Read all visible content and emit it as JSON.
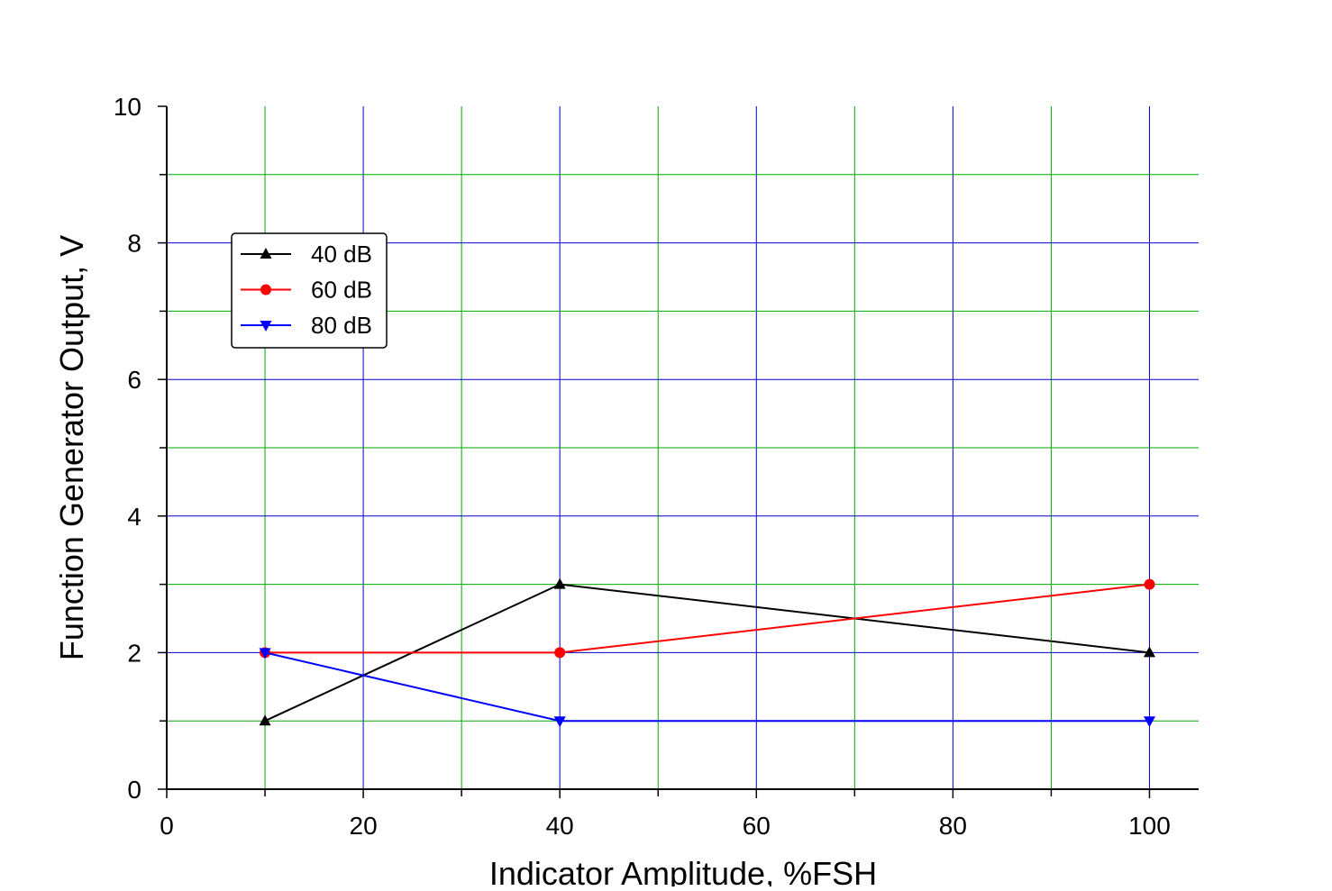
{
  "chart_data": {
    "type": "line",
    "title": "",
    "xlabel": "Indicator Amplitude, %FSH",
    "ylabel": "Function Generator Output, V",
    "xlim": [
      0,
      105
    ],
    "ylim": [
      0,
      10
    ],
    "x_ticks": [
      0,
      20,
      40,
      60,
      80,
      100
    ],
    "x_tick_labels": [
      "0",
      "20",
      "40",
      "60",
      "80",
      "100"
    ],
    "y_ticks": [
      0,
      2,
      4,
      6,
      8,
      10
    ],
    "y_tick_labels": [
      "0",
      "2",
      "4",
      "6",
      "8",
      "10"
    ],
    "grid": {
      "major": true,
      "minor": true,
      "major_color": "#0000cc",
      "minor_color": "#00aa00"
    },
    "legend_position": "upper-left",
    "series": [
      {
        "name": "40 dB",
        "color": "#000000",
        "marker": "triangle-up",
        "x": [
          10,
          40,
          100
        ],
        "y": [
          1,
          3,
          2
        ]
      },
      {
        "name": "60 dB",
        "color": "#ff0000",
        "marker": "circle",
        "x": [
          10,
          40,
          100
        ],
        "y": [
          2,
          2,
          3
        ]
      },
      {
        "name": "80 dB",
        "color": "#0000ff",
        "marker": "triangle-down",
        "x": [
          10,
          40,
          100
        ],
        "y": [
          2,
          1,
          1
        ]
      }
    ]
  }
}
